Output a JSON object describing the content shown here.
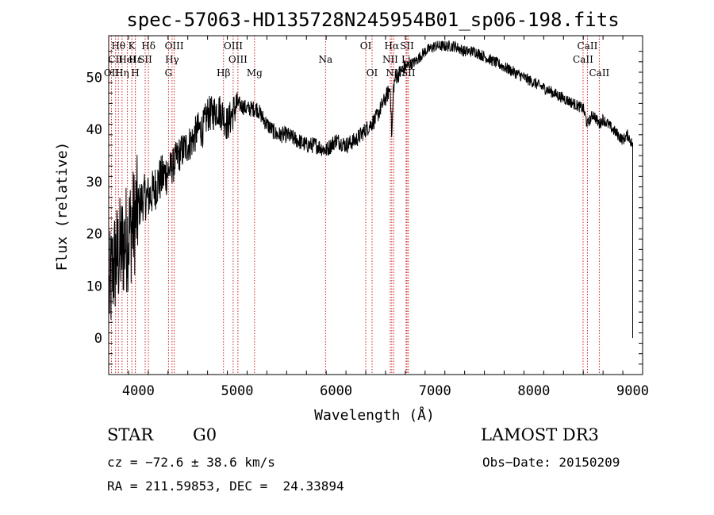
{
  "chart_data": {
    "type": "line",
    "title": "spec-57063-HD135728N245954B01_sp06-198.fits",
    "xlabel": "Wavelength (Å)",
    "ylabel": "Flux (relative)",
    "xlim": [
      3700,
      9100
    ],
    "ylim": [
      -7,
      58
    ],
    "xticks": [
      4000,
      5000,
      6000,
      7000,
      8000,
      9000
    ],
    "yticks": [
      0,
      10,
      20,
      30,
      40,
      50
    ],
    "grid": false,
    "series": [
      {
        "name": "spectrum",
        "x": [
          3700,
          3750,
          3800,
          3850,
          3900,
          3950,
          4000,
          4050,
          4100,
          4150,
          4200,
          4250,
          4300,
          4350,
          4400,
          4450,
          4500,
          4550,
          4600,
          4650,
          4700,
          4750,
          4800,
          4850,
          4900,
          4950,
          5000,
          5100,
          5200,
          5300,
          5400,
          5500,
          5600,
          5700,
          5800,
          5900,
          6000,
          6100,
          6200,
          6300,
          6400,
          6500,
          6550,
          6563,
          6580,
          6600,
          6700,
          6800,
          6900,
          7000,
          7100,
          7200,
          7300,
          7400,
          7500,
          7600,
          7700,
          7800,
          7900,
          8000,
          8100,
          8200,
          8300,
          8400,
          8500,
          8542,
          8600,
          8662,
          8700,
          8750,
          8800,
          8850,
          8900,
          8950,
          9000
        ],
        "y": [
          8,
          14,
          16,
          18,
          20,
          22,
          25,
          27,
          27,
          28,
          30,
          31,
          32,
          33,
          35,
          36,
          37,
          38,
          40,
          40,
          43,
          43,
          44,
          43,
          41,
          43,
          45,
          44,
          44,
          41,
          39,
          39,
          38,
          37,
          37,
          36,
          38,
          37,
          38,
          40,
          42,
          46,
          48,
          38,
          48,
          50,
          52,
          53,
          55,
          56,
          56,
          56,
          55,
          55,
          54,
          53,
          52,
          51,
          50,
          49,
          48,
          47,
          46,
          45,
          44,
          41,
          43,
          41,
          42,
          41,
          40,
          39,
          38,
          39,
          37
        ]
      }
    ],
    "lines": [
      {
        "label": "Hθ",
        "x": 3798,
        "row": 0
      },
      {
        "label": "CII",
        "x": 3770,
        "row": 1
      },
      {
        "label": "OII",
        "x": 3728,
        "row": 2
      },
      {
        "label": "K",
        "x": 3934,
        "row": 0
      },
      {
        "label": "Hε",
        "x": 3970,
        "row": 1
      },
      {
        "label": "Hη",
        "x": 3835,
        "row": 2
      },
      {
        "label": "HeI",
        "x": 3889,
        "row": 1
      },
      {
        "label": "H",
        "x": 3969,
        "row": 2
      },
      {
        "label": "Hδ",
        "x": 4102,
        "row": 0
      },
      {
        "label": "SII",
        "x": 4069,
        "row": 1
      },
      {
        "label": "OIII",
        "x": 4363,
        "row": 0
      },
      {
        "label": "Hγ",
        "x": 4341,
        "row": 1
      },
      {
        "label": "G",
        "x": 4305,
        "row": 2
      },
      {
        "label": "Hβ",
        "x": 4861,
        "row": 2
      },
      {
        "label": "OIII",
        "x": 4959,
        "row": 0
      },
      {
        "label": "OIII",
        "x": 5007,
        "row": 1
      },
      {
        "label": "Mg",
        "x": 5175,
        "row": 2
      },
      {
        "label": "Na",
        "x": 5893,
        "row": 1
      },
      {
        "label": "OI",
        "x": 6300,
        "row": 0
      },
      {
        "label": "OI",
        "x": 6364,
        "row": 2
      },
      {
        "label": "Hα",
        "x": 6563,
        "row": 0
      },
      {
        "label": "SII",
        "x": 6717,
        "row": 0
      },
      {
        "label": "NII",
        "x": 6548,
        "row": 1
      },
      {
        "label": "Li",
        "x": 6708,
        "row": 1
      },
      {
        "label": "NII",
        "x": 6583,
        "row": 2
      },
      {
        "label": "SII",
        "x": 6731,
        "row": 2
      },
      {
        "label": "CaII",
        "x": 8542,
        "row": 0
      },
      {
        "label": "CaII",
        "x": 8498,
        "row": 1
      },
      {
        "label": "CaII",
        "x": 8662,
        "row": 2
      }
    ]
  },
  "info": {
    "object_class": "STAR",
    "subclass": "G0",
    "survey": "LAMOST DR3",
    "redshift": "cz = −72.6 ± 38.6 km/s",
    "obs_date": "Obs−Date: 20150209",
    "coords": "RA = 211.59853, DEC =  24.33894"
  }
}
